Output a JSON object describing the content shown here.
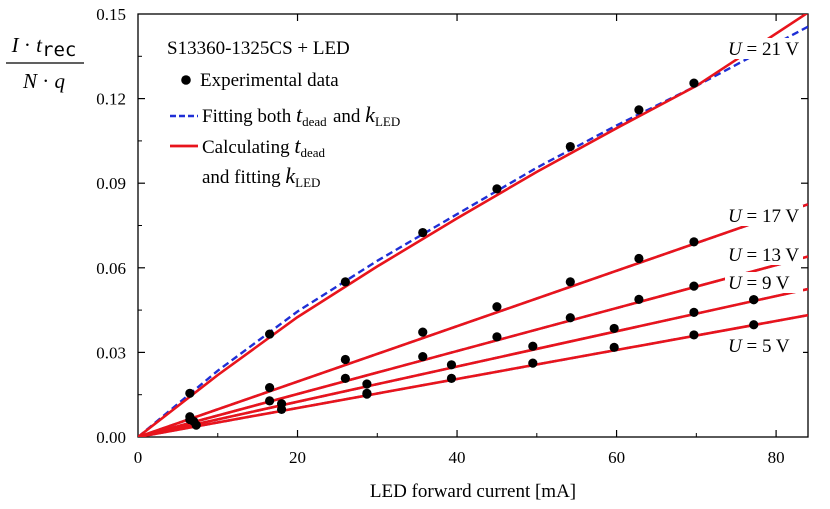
{
  "chart_data": {
    "type": "line",
    "title": "S13360-1325CS + LED",
    "xlabel": "LED forward current [mA]",
    "ylabel": {
      "numerator": "I · t_rec",
      "denominator": "N · q"
    },
    "xlim": [
      0,
      84
    ],
    "ylim": [
      0,
      0.15
    ],
    "x_ticks": [
      "0",
      "20",
      "40",
      "60",
      "80"
    ],
    "y_ticks": [
      "0.00",
      "0.03",
      "0.06",
      "0.09",
      "0.12",
      "0.15"
    ],
    "grid": false,
    "legend_position": "top-left",
    "legend": [
      {
        "label": "Experimental data",
        "style": "marker"
      },
      {
        "label": "Fitting both t_dead and k_LED",
        "style": "dashed"
      },
      {
        "label": "Calculating t_dead and fitting k_LED",
        "style": "solid"
      }
    ],
    "series": [
      {
        "name": "U = 21 V",
        "points": [
          [
            6.5,
            0.0155
          ],
          [
            16.5,
            0.0365
          ],
          [
            26,
            0.055
          ],
          [
            35.7,
            0.0725
          ],
          [
            45,
            0.088
          ],
          [
            54.2,
            0.103
          ],
          [
            62.8,
            0.116
          ],
          [
            69.7,
            0.1255
          ]
        ],
        "fit_dashed": [
          [
            0,
            0
          ],
          [
            10,
            0.0235
          ],
          [
            20,
            0.0445
          ],
          [
            30,
            0.0625
          ],
          [
            40,
            0.079
          ],
          [
            50,
            0.0955
          ],
          [
            60,
            0.1105
          ],
          [
            70,
            0.1245
          ],
          [
            84,
            0.1455
          ]
        ],
        "fit_solid": [
          [
            0,
            0
          ],
          [
            10,
            0.022
          ],
          [
            20,
            0.0425
          ],
          [
            30,
            0.0605
          ],
          [
            40,
            0.0775
          ],
          [
            50,
            0.094
          ],
          [
            60,
            0.1095
          ],
          [
            70,
            0.1245
          ],
          [
            84,
            0.1505
          ]
        ]
      },
      {
        "name": "U = 17 V",
        "points": [
          [
            6.5,
            0.0072
          ],
          [
            16.5,
            0.0175
          ],
          [
            26,
            0.0275
          ],
          [
            35.7,
            0.0372
          ],
          [
            45,
            0.0462
          ],
          [
            54.2,
            0.055
          ],
          [
            62.8,
            0.0633
          ],
          [
            69.7,
            0.0692
          ]
        ],
        "fit_solid": [
          [
            0,
            0
          ],
          [
            84,
            0.0825
          ]
        ]
      },
      {
        "name": "U = 13 V",
        "points": [
          [
            6.5,
            0.0062
          ],
          [
            16.5,
            0.0128
          ],
          [
            26,
            0.0208
          ],
          [
            28.7,
            0.0188
          ],
          [
            35.7,
            0.0285
          ],
          [
            45,
            0.0355
          ],
          [
            54.2,
            0.0423
          ],
          [
            62.8,
            0.0488
          ],
          [
            69.7,
            0.0535
          ],
          [
            77.2,
            0.0487
          ]
        ],
        "fit_solid": [
          [
            0,
            0
          ],
          [
            84,
            0.064
          ]
        ]
      },
      {
        "name": "U = 9 V",
        "points": [
          [
            7,
            0.0055
          ],
          [
            18,
            0.0118
          ],
          [
            28.7,
            0.0155
          ],
          [
            39.3,
            0.0256
          ],
          [
            49.5,
            0.0322
          ],
          [
            59.7,
            0.0385
          ],
          [
            69.7,
            0.0442
          ],
          [
            77.2,
            0.0487
          ]
        ],
        "fit_solid": [
          [
            0,
            0
          ],
          [
            84,
            0.0525
          ]
        ]
      },
      {
        "name": "U = 5 V",
        "points": [
          [
            7.3,
            0.0042
          ],
          [
            18,
            0.0098
          ],
          [
            28.7,
            0.0152
          ],
          [
            39.3,
            0.0208
          ],
          [
            49.5,
            0.0262
          ],
          [
            59.7,
            0.0318
          ],
          [
            69.7,
            0.0362
          ],
          [
            77.2,
            0.0398
          ]
        ],
        "fit_solid": [
          [
            0,
            0
          ],
          [
            84,
            0.0432
          ]
        ]
      }
    ],
    "curve_labels": [
      "U = 21 V",
      "U = 17 V",
      "U = 13 V",
      "U = 9 V",
      "U = 5 V"
    ],
    "colors": {
      "solid_fit": "#e8141c",
      "dashed_fit": "#1f2fd6",
      "markers": "#000000"
    }
  }
}
